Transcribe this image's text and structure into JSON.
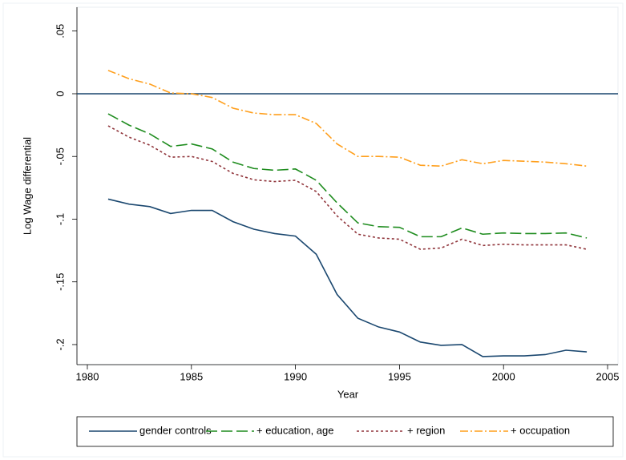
{
  "chart_data": {
    "type": "line",
    "x": [
      1981,
      1982,
      1983,
      1984,
      1985,
      1986,
      1987,
      1988,
      1989,
      1990,
      1991,
      1992,
      1993,
      1994,
      1995,
      1996,
      1997,
      1998,
      1999,
      2000,
      2001,
      2002,
      2003,
      2004
    ],
    "series": [
      {
        "name": "gender controls",
        "color": "#1a476f",
        "dash": "none",
        "values": [
          -0.084,
          -0.088,
          -0.09,
          -0.0955,
          -0.093,
          -0.093,
          -0.102,
          -0.108,
          -0.1115,
          -0.1135,
          -0.128,
          -0.16,
          -0.179,
          -0.186,
          -0.19,
          -0.198,
          -0.2006,
          -0.2,
          -0.2096,
          -0.209,
          -0.209,
          -0.208,
          -0.2045,
          -0.2058
        ]
      },
      {
        "name": "+ education, age",
        "color": "#1e8c1e",
        "dash": "14 5",
        "values": [
          -0.016,
          -0.025,
          -0.032,
          -0.042,
          -0.04,
          -0.044,
          -0.0545,
          -0.0596,
          -0.061,
          -0.06,
          -0.069,
          -0.087,
          -0.103,
          -0.106,
          -0.1065,
          -0.114,
          -0.114,
          -0.107,
          -0.112,
          -0.111,
          -0.1115,
          -0.1115,
          -0.111,
          -0.115
        ]
      },
      {
        "name": "+ region",
        "color": "#90353b",
        "dash": "3 3",
        "values": [
          -0.0256,
          -0.0346,
          -0.041,
          -0.0506,
          -0.05,
          -0.054,
          -0.0635,
          -0.0686,
          -0.07,
          -0.069,
          -0.078,
          -0.0974,
          -0.112,
          -0.115,
          -0.116,
          -0.124,
          -0.123,
          -0.116,
          -0.121,
          -0.12,
          -0.1205,
          -0.1205,
          -0.1205,
          -0.124
        ]
      },
      {
        "name": "+ occupation",
        "color": "#ff9f1c",
        "dash": "10 3 2 3",
        "values": [
          0.0186,
          0.012,
          0.0077,
          0.0006,
          0,
          -0.003,
          -0.0115,
          -0.0154,
          -0.0167,
          -0.0167,
          -0.0237,
          -0.04,
          -0.05,
          -0.05,
          -0.0506,
          -0.057,
          -0.0577,
          -0.0526,
          -0.0558,
          -0.0532,
          -0.0538,
          -0.0545,
          -0.0558,
          -0.0577
        ]
      }
    ],
    "x_label": "Year",
    "y_label": "Log Wage differential",
    "xlim": [
      1979.5,
      2005.5
    ],
    "xticks": [
      1980,
      1985,
      1990,
      1995,
      2000,
      2005
    ],
    "ylim": [
      -0.216,
      0.069
    ],
    "yticks": [
      {
        "value": 0.05,
        "label": ".05"
      },
      0,
      {
        "value": -0.05,
        "label": "-.05"
      },
      {
        "value": -0.1,
        "label": "-.1"
      },
      {
        "value": -0.15,
        "label": "-.15"
      },
      {
        "value": -0.2,
        "label": "-.2"
      }
    ],
    "hline": 0,
    "legend": "bottom"
  }
}
